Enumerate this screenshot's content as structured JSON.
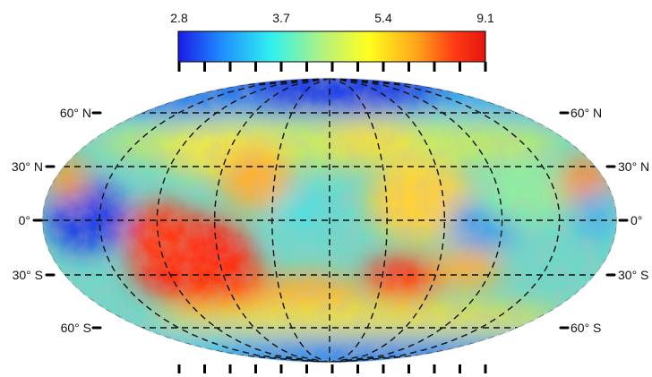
{
  "colorbar": {
    "tick_labels": [
      "2.8",
      "3.7",
      "5.4",
      "9.1"
    ],
    "gradient_colors": [
      "#1a1ae6",
      "#1f8cff",
      "#2ff0f0",
      "#b9f27a",
      "#ffff1e",
      "#ffa21a",
      "#ff3a14",
      "#e6150f"
    ]
  },
  "map": {
    "projection": "elliptical",
    "graticule": "dashed",
    "parallel_labels_left": [
      "60° N",
      "30° N",
      "0°",
      "30° S",
      "60° S"
    ],
    "parallel_labels_right": [
      "60° N",
      "30° N",
      "0°",
      "30° S",
      "60° S"
    ],
    "colors": {
      "low": "#1030e0",
      "mid": "#40e0d0",
      "mid_high": "#ffe838",
      "high": "#f02812"
    }
  }
}
